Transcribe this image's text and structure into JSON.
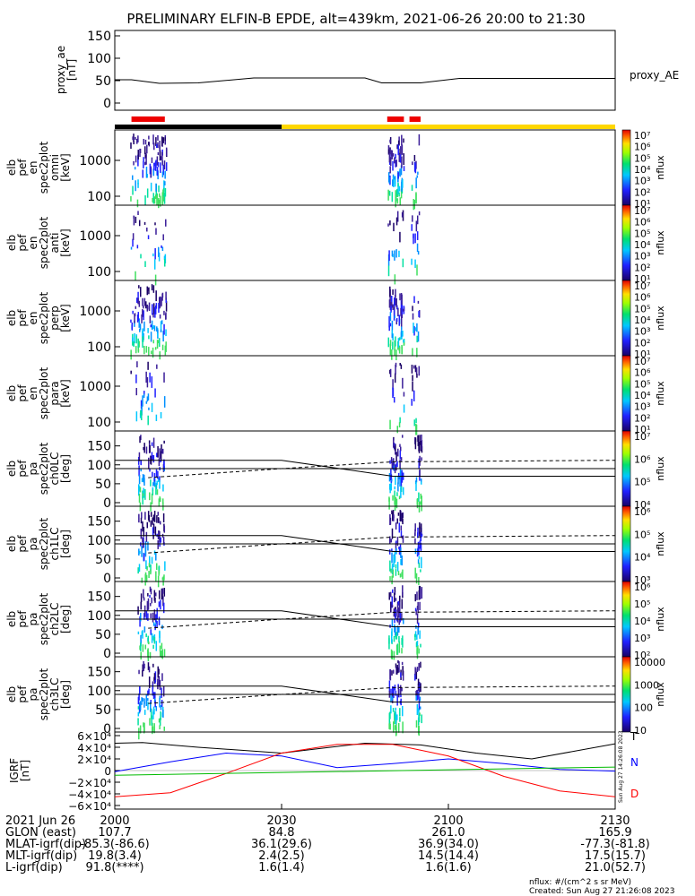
{
  "title": "PRELIMINARY ELFIN-B EPDE, alt=439km, 2021-06-26 20:00 to 21:30",
  "panels": {
    "ae": {
      "ylabel": [
        "proxy_ae",
        "[nT]"
      ],
      "ticks": [
        "150",
        "100",
        "50",
        "0"
      ],
      "legend": "proxy_AE"
    },
    "spec": [
      {
        "ylabel": [
          "elb",
          "pef",
          "en",
          "spec2plot",
          "omni",
          "[keV]"
        ],
        "ticks": [
          "1000",
          "100"
        ],
        "cbar": [
          "10⁷",
          "10⁶",
          "10⁵",
          "10⁴",
          "10³",
          "10²",
          "10¹"
        ],
        "cbar_label": "nflux"
      },
      {
        "ylabel": [
          "elb",
          "pef",
          "en",
          "spec2plot",
          "anti",
          "[keV]"
        ],
        "ticks": [
          "1000",
          "100"
        ],
        "cbar": [
          "10⁷",
          "10⁶",
          "10⁵",
          "10⁴",
          "10³",
          "10²",
          "10¹"
        ],
        "cbar_label": "nflux"
      },
      {
        "ylabel": [
          "elb",
          "pef",
          "en",
          "spec2plot",
          "perp",
          "[keV]"
        ],
        "ticks": [
          "1000",
          "100"
        ],
        "cbar": [
          "10⁷",
          "10⁶",
          "10⁵",
          "10⁴",
          "10³",
          "10²",
          "10¹"
        ],
        "cbar_label": "nflux"
      },
      {
        "ylabel": [
          "elb",
          "pef",
          "en",
          "spec2plot",
          "para",
          "[keV]"
        ],
        "ticks": [
          "1000",
          "100"
        ],
        "cbar": [
          "10⁷",
          "10⁶",
          "10⁵",
          "10⁴",
          "10³",
          "10²",
          "10¹"
        ],
        "cbar_label": "nflux"
      }
    ],
    "pa": [
      {
        "ylabel": [
          "elb",
          "pef",
          "pa",
          "spec2plot",
          "ch0LC",
          "[deg]"
        ],
        "ticks": [
          "150",
          "100",
          "50",
          "0"
        ],
        "cbar": [
          "10⁷",
          "10⁶",
          "10⁵",
          "10⁴"
        ],
        "cbar_label": "nflux"
      },
      {
        "ylabel": [
          "elb",
          "pef",
          "pa",
          "spec2plot",
          "ch1LC",
          "[deg]"
        ],
        "ticks": [
          "150",
          "100",
          "50",
          "0"
        ],
        "cbar": [
          "10⁶",
          "10⁵",
          "10⁴",
          "10³"
        ],
        "cbar_label": "nflux"
      },
      {
        "ylabel": [
          "elb",
          "pef",
          "pa",
          "spec2plot",
          "ch2LC",
          "[deg]"
        ],
        "ticks": [
          "150",
          "100",
          "50",
          "0"
        ],
        "cbar": [
          "10⁶",
          "10⁵",
          "10⁴",
          "10³",
          "10²"
        ],
        "cbar_label": "nflux"
      },
      {
        "ylabel": [
          "elb",
          "pef",
          "pa",
          "spec2plot",
          "ch3LC",
          "[deg]"
        ],
        "ticks": [
          "150",
          "100",
          "50",
          "0"
        ],
        "cbar": [
          "10000",
          "1000",
          "100",
          "10"
        ],
        "cbar_label": "nflux"
      }
    ],
    "igrf": {
      "ylabel": [
        "IGRF",
        "[nT]"
      ],
      "ticks": [
        "6×10⁴",
        "4×10⁴",
        "2×10⁴",
        "0",
        "−2×10⁴",
        "−4×10⁴",
        "−6×10⁴"
      ],
      "legend": [
        "T",
        "N",
        "D"
      ],
      "legend_colors": [
        "#000000",
        "#0000ff",
        "#ff0000"
      ],
      "side_note": "Sun Aug 27 14:26:08 2023"
    }
  },
  "chart_data": {
    "type": "line",
    "x_axis": {
      "label": "2021 Jun 26",
      "ticks": [
        "2000",
        "2030",
        "2100",
        "2130"
      ],
      "range": [
        "20:00",
        "21:30"
      ]
    },
    "series": [
      {
        "name": "proxy_AE",
        "x_min": [
          0,
          3,
          8,
          15,
          25,
          45,
          48,
          55,
          62,
          65,
          90
        ],
        "values": [
          52,
          52,
          44,
          45,
          56,
          56,
          45,
          45,
          55,
          55,
          55
        ]
      },
      {
        "name": "T",
        "x_min": [
          0,
          5,
          15,
          30,
          45,
          55,
          65,
          75,
          90
        ],
        "values": [
          47000,
          48000,
          40000,
          30000,
          47000,
          44000,
          30000,
          20000,
          46000
        ]
      },
      {
        "name": "N",
        "x_min": [
          0,
          10,
          20,
          30,
          40,
          50,
          60,
          70,
          80,
          90
        ],
        "values": [
          -2000,
          15000,
          30000,
          25000,
          5000,
          12000,
          20000,
          12000,
          2000,
          -1000
        ]
      },
      {
        "name": "D",
        "x_min": [
          0,
          10,
          20,
          30,
          40,
          50,
          60,
          70,
          80,
          90
        ],
        "values": [
          -45000,
          -38000,
          -5000,
          30000,
          45000,
          45000,
          25000,
          -10000,
          -35000,
          -45000
        ]
      }
    ],
    "orbit_bar": {
      "dark_until_min": 30,
      "color_dark": "#000000",
      "color_sun": "#ffd700"
    },
    "science_zones_min": [
      [
        3,
        9
      ],
      [
        49,
        52
      ],
      [
        53,
        55
      ]
    ],
    "pa_lines": {
      "solid": [
        110,
        90,
        65
      ],
      "dashed": [
        65,
        115
      ]
    }
  },
  "ephemeris": {
    "rows": [
      {
        "label": "2021 Jun 26",
        "v": [
          "2000",
          "2030",
          "2100",
          "2130"
        ]
      },
      {
        "label": "GLON (east)",
        "v": [
          "107.7",
          "84.8",
          "261.0",
          "165.9"
        ]
      },
      {
        "label": "MLAT-igrf(dip)",
        "v": [
          "-85.3(-86.6)",
          "36.1(29.6)",
          "36.9(34.0)",
          "-77.3(-81.8)"
        ]
      },
      {
        "label": "MLT-igrf(dip)",
        "v": [
          "19.8(3.4)",
          "2.4(2.5)",
          "14.5(14.4)",
          "17.5(15.7)"
        ]
      },
      {
        "label": "L-igrf(dip)",
        "v": [
          "91.8(****)",
          "1.6(1.4)",
          "1.6(1.6)",
          "21.0(52.7)"
        ]
      }
    ],
    "footer": [
      "nflux: #/(cm^2 s sr MeV)",
      "Created: Sun Aug 27 21:26:08 2023"
    ]
  }
}
